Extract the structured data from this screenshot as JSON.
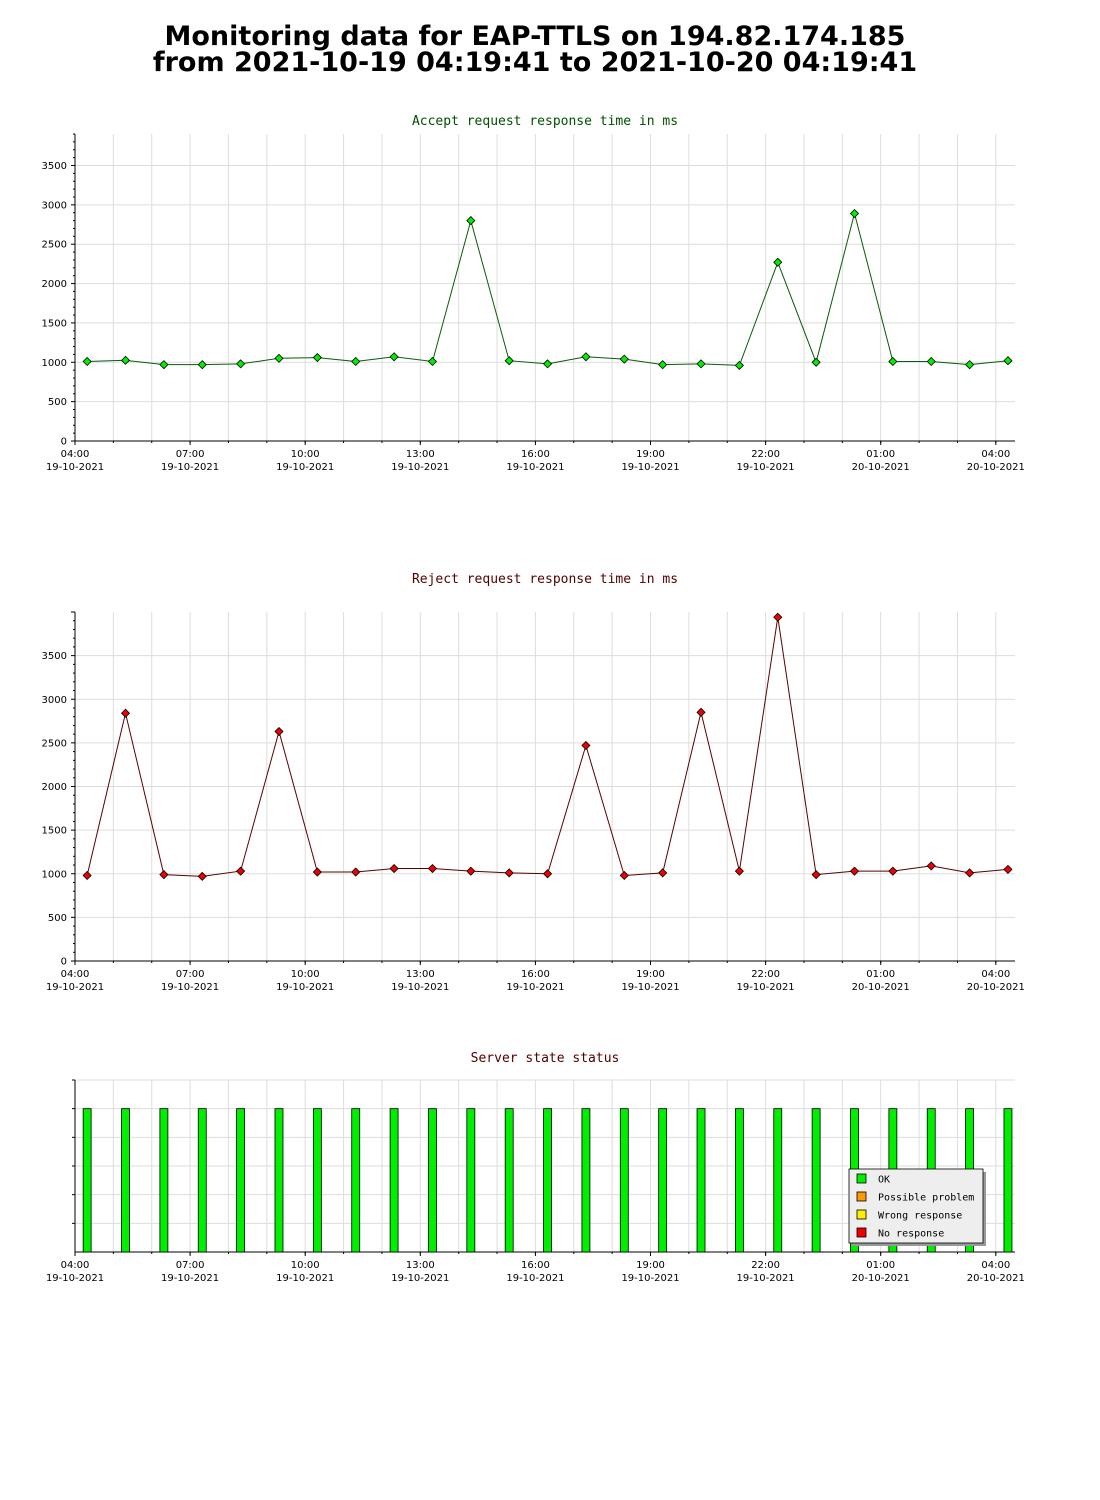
{
  "header": {
    "line1": "Monitoring data for EAP-TTLS on 194.82.174.185",
    "line2": "from 2021-10-19 04:19:41 to 2021-10-20 04:19:41"
  },
  "colors": {
    "accept_line": "#0a5a0a",
    "accept_point": "#00ee00",
    "reject_line": "#5a0000",
    "reject_point": "#ee0000",
    "accept_title": "#005000",
    "reject_title": "#500000",
    "status_title": "#500000",
    "grid": "#dddddd",
    "ok_bar": "#00ee00"
  },
  "x_ticks": [
    {
      "time": "04:00",
      "date": "19-10-2021"
    },
    {
      "time": "07:00",
      "date": "19-10-2021"
    },
    {
      "time": "10:00",
      "date": "19-10-2021"
    },
    {
      "time": "13:00",
      "date": "19-10-2021"
    },
    {
      "time": "16:00",
      "date": "19-10-2021"
    },
    {
      "time": "19:00",
      "date": "19-10-2021"
    },
    {
      "time": "22:00",
      "date": "19-10-2021"
    },
    {
      "time": "01:00",
      "date": "20-10-2021"
    },
    {
      "time": "04:00",
      "date": "20-10-2021"
    }
  ],
  "chart_data": [
    {
      "type": "line",
      "title": "Accept request response time in ms",
      "x_start": "2021-10-19 04:00",
      "x_end": "2021-10-20 04:30",
      "ylim": [
        0,
        3900
      ],
      "y_ticks": [
        0,
        500,
        1000,
        1500,
        2000,
        2500,
        3000,
        3500
      ],
      "grid": true,
      "series": [
        {
          "x": [
            "2021-10-19 04:19",
            "2021-10-19 05:19",
            "2021-10-19 06:19",
            "2021-10-19 07:19",
            "2021-10-19 08:19",
            "2021-10-19 09:19",
            "2021-10-19 10:19",
            "2021-10-19 11:19",
            "2021-10-19 12:19",
            "2021-10-19 13:19",
            "2021-10-19 14:19",
            "2021-10-19 15:19",
            "2021-10-19 16:19",
            "2021-10-19 17:19",
            "2021-10-19 18:19",
            "2021-10-19 19:19",
            "2021-10-19 20:19",
            "2021-10-19 21:19",
            "2021-10-19 22:19",
            "2021-10-19 23:19",
            "2021-10-20 00:19",
            "2021-10-20 01:19",
            "2021-10-20 02:19",
            "2021-10-20 03:19",
            "2021-10-20 04:19"
          ],
          "values": [
            1010,
            1025,
            970,
            970,
            980,
            1050,
            1060,
            1010,
            1070,
            1010,
            2800,
            1020,
            980,
            1070,
            1040,
            970,
            980,
            960,
            2270,
            1000,
            2890,
            1010,
            1010,
            970,
            1020
          ]
        }
      ]
    },
    {
      "type": "line",
      "title": "Reject request response time in ms",
      "x_start": "2021-10-19 04:00",
      "x_end": "2021-10-20 04:30",
      "ylim": [
        0,
        4000
      ],
      "y_ticks": [
        0,
        500,
        1000,
        1500,
        2000,
        2500,
        3000,
        3500
      ],
      "grid": true,
      "series": [
        {
          "x": [
            "2021-10-19 04:19",
            "2021-10-19 05:19",
            "2021-10-19 06:19",
            "2021-10-19 07:19",
            "2021-10-19 08:19",
            "2021-10-19 09:19",
            "2021-10-19 10:19",
            "2021-10-19 11:19",
            "2021-10-19 12:19",
            "2021-10-19 13:19",
            "2021-10-19 14:19",
            "2021-10-19 15:19",
            "2021-10-19 16:19",
            "2021-10-19 17:19",
            "2021-10-19 18:19",
            "2021-10-19 19:19",
            "2021-10-19 20:19",
            "2021-10-19 21:19",
            "2021-10-19 22:19",
            "2021-10-19 23:19",
            "2021-10-20 00:19",
            "2021-10-20 01:19",
            "2021-10-20 02:19",
            "2021-10-20 03:19",
            "2021-10-20 04:19"
          ],
          "values": [
            980,
            2840,
            990,
            970,
            1030,
            2630,
            1020,
            1020,
            1060,
            1060,
            1030,
            1010,
            1000,
            2470,
            980,
            1010,
            2850,
            1030,
            3940,
            990,
            1030,
            1030,
            1090,
            1010,
            1050
          ]
        }
      ]
    },
    {
      "type": "bar",
      "title": "Server state status",
      "x_start": "2021-10-19 04:00",
      "x_end": "2021-10-20 04:30",
      "x": [
        "2021-10-19 04:19",
        "2021-10-19 05:19",
        "2021-10-19 06:19",
        "2021-10-19 07:19",
        "2021-10-19 08:19",
        "2021-10-19 09:19",
        "2021-10-19 10:19",
        "2021-10-19 11:19",
        "2021-10-19 12:19",
        "2021-10-19 13:19",
        "2021-10-19 14:19",
        "2021-10-19 15:19",
        "2021-10-19 16:19",
        "2021-10-19 17:19",
        "2021-10-19 18:19",
        "2021-10-19 19:19",
        "2021-10-19 20:19",
        "2021-10-19 21:19",
        "2021-10-19 22:19",
        "2021-10-19 23:19",
        "2021-10-20 00:19",
        "2021-10-20 01:19",
        "2021-10-20 02:19",
        "2021-10-20 03:19",
        "2021-10-20 04:19"
      ],
      "states": [
        "OK",
        "OK",
        "OK",
        "OK",
        "OK",
        "OK",
        "OK",
        "OK",
        "OK",
        "OK",
        "OK",
        "OK",
        "OK",
        "OK",
        "OK",
        "OK",
        "OK",
        "OK",
        "OK",
        "OK",
        "OK",
        "OK",
        "OK",
        "OK",
        "OK"
      ],
      "legend_position": "bottom-right",
      "legend": [
        {
          "label": "OK",
          "color": "#00ee00"
        },
        {
          "label": "Possible problem",
          "color": "#ff9900"
        },
        {
          "label": "Wrong response",
          "color": "#ffee00"
        },
        {
          "label": "No response",
          "color": "#ee0000"
        }
      ]
    }
  ]
}
